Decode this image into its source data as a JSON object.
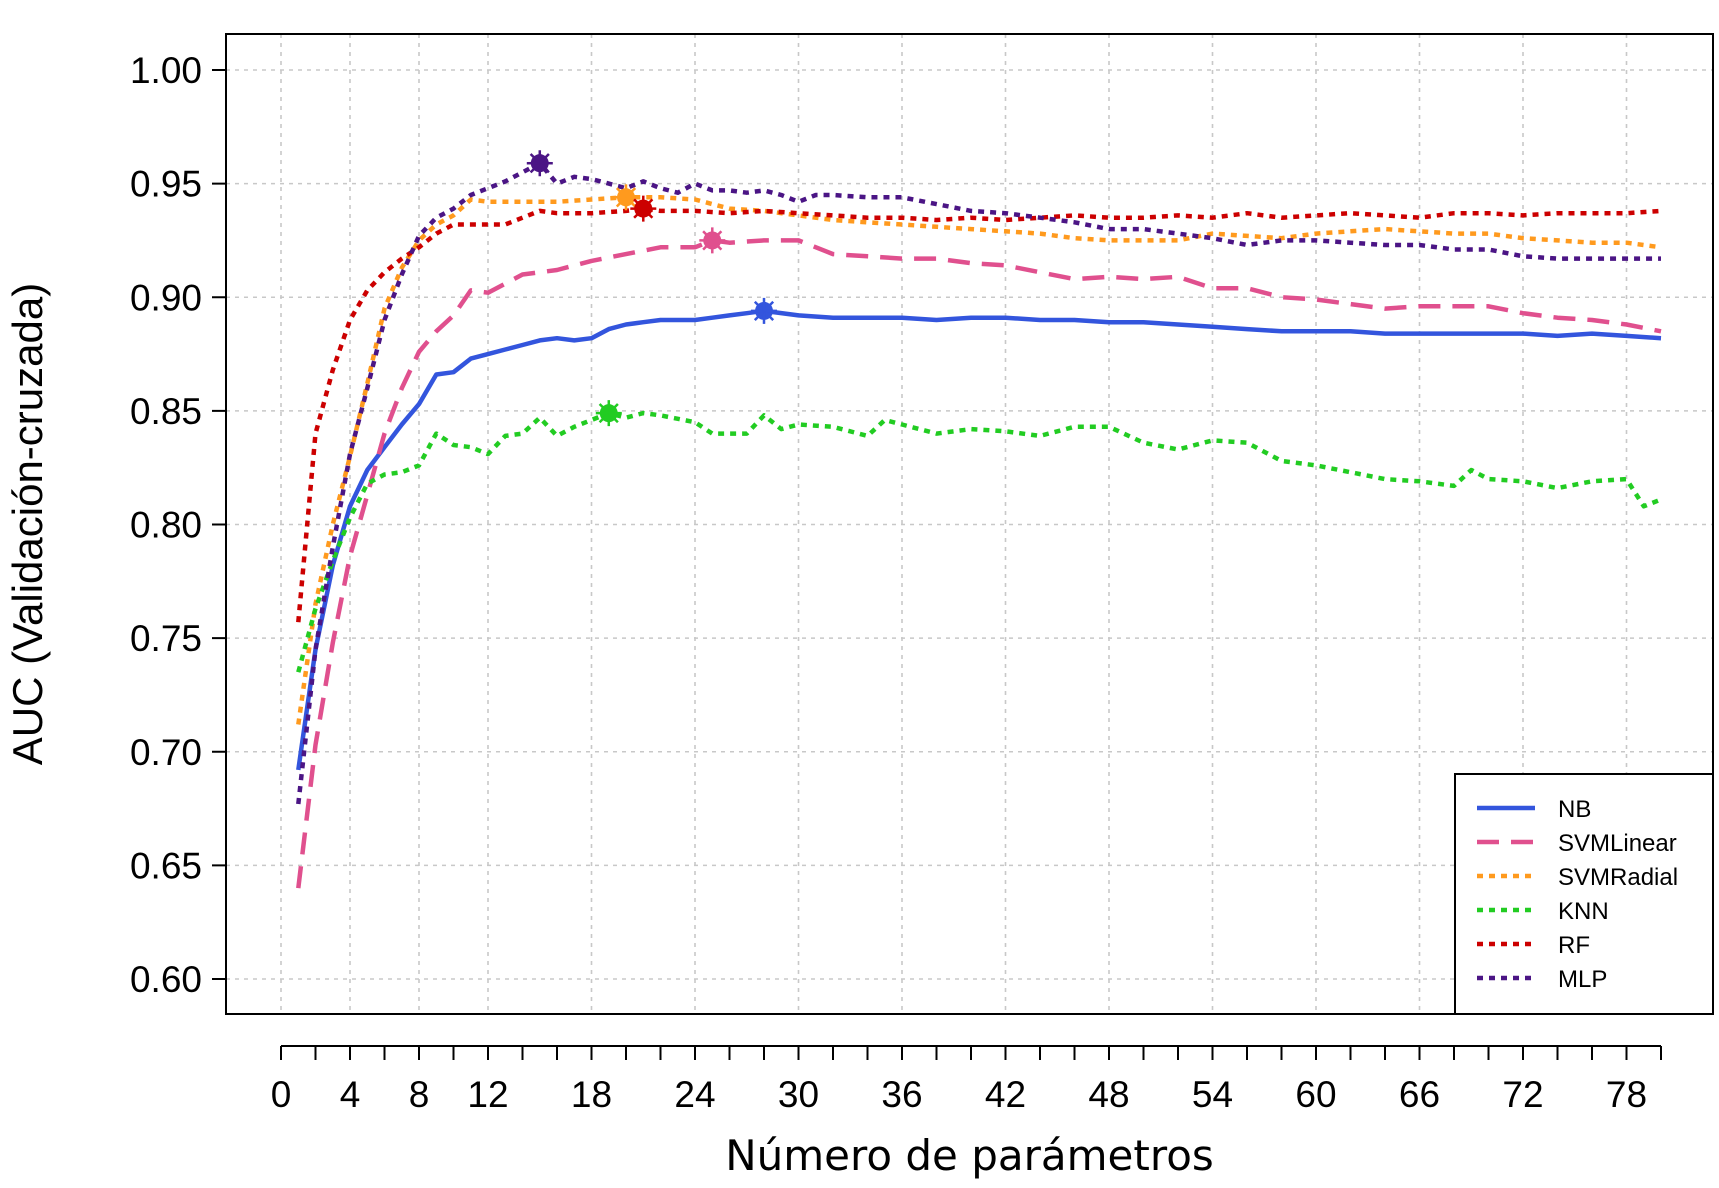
{
  "chart_data": {
    "type": "line",
    "title": "",
    "xlabel": "Número de parámetros",
    "ylabel": "AUC (Validación-cruzada)",
    "xlim": [
      0,
      80
    ],
    "ylim": [
      0.6,
      1.0
    ],
    "xticks_major": [
      0,
      4,
      8,
      12,
      18,
      24,
      30,
      36,
      42,
      48,
      54,
      60,
      66,
      72,
      78
    ],
    "xticks_minor_step": 2,
    "yticks": [
      "0.60",
      "0.65",
      "0.70",
      "0.75",
      "0.80",
      "0.85",
      "0.90",
      "0.95",
      "1.00"
    ],
    "grid": true,
    "legend_position": "bottom-right",
    "series": [
      {
        "name": "NB",
        "color": "#3355DD",
        "dash": "solid",
        "best": [
          28,
          0.894
        ],
        "x": [
          1,
          2,
          3,
          4,
          5,
          6,
          7,
          8,
          9,
          10,
          11,
          12,
          13,
          14,
          15,
          16,
          17,
          18,
          19,
          20,
          21,
          22,
          23,
          24,
          25,
          26,
          27,
          28,
          30,
          32,
          34,
          36,
          38,
          40,
          42,
          44,
          46,
          48,
          50,
          52,
          54,
          56,
          58,
          60,
          62,
          64,
          66,
          68,
          70,
          72,
          74,
          76,
          78,
          80
        ],
        "y": [
          0.692,
          0.745,
          0.782,
          0.808,
          0.824,
          0.834,
          0.844,
          0.853,
          0.866,
          0.867,
          0.873,
          0.875,
          0.877,
          0.879,
          0.881,
          0.882,
          0.881,
          0.882,
          0.886,
          0.888,
          0.889,
          0.89,
          0.89,
          0.89,
          0.891,
          0.892,
          0.893,
          0.894,
          0.892,
          0.891,
          0.891,
          0.891,
          0.89,
          0.891,
          0.891,
          0.89,
          0.89,
          0.889,
          0.889,
          0.888,
          0.887,
          0.886,
          0.885,
          0.885,
          0.885,
          0.884,
          0.884,
          0.884,
          0.884,
          0.884,
          0.883,
          0.884,
          0.883,
          0.882
        ]
      },
      {
        "name": "SVMLinear",
        "color": "#E0508E",
        "dash": "long-dash",
        "best": [
          25,
          0.925
        ],
        "x": [
          1,
          2,
          3,
          4,
          5,
          6,
          7,
          8,
          9,
          10,
          11,
          12,
          13,
          14,
          16,
          18,
          20,
          22,
          24,
          25,
          26,
          28,
          30,
          32,
          34,
          36,
          38,
          40,
          42,
          44,
          46,
          48,
          50,
          52,
          54,
          56,
          58,
          60,
          62,
          64,
          66,
          68,
          70,
          72,
          74,
          76,
          78,
          80
        ],
        "y": [
          0.64,
          0.703,
          0.748,
          0.786,
          0.813,
          0.84,
          0.86,
          0.876,
          0.885,
          0.892,
          0.903,
          0.902,
          0.906,
          0.91,
          0.912,
          0.916,
          0.919,
          0.922,
          0.922,
          0.925,
          0.924,
          0.925,
          0.925,
          0.919,
          0.918,
          0.917,
          0.917,
          0.915,
          0.914,
          0.911,
          0.908,
          0.909,
          0.908,
          0.909,
          0.904,
          0.904,
          0.9,
          0.899,
          0.897,
          0.895,
          0.896,
          0.896,
          0.896,
          0.893,
          0.891,
          0.89,
          0.888,
          0.885
        ]
      },
      {
        "name": "SVMRadial",
        "color": "#FF9A1E",
        "dash": "dot",
        "best": [
          20,
          0.944
        ],
        "x": [
          1,
          2,
          3,
          4,
          5,
          6,
          7,
          8,
          9,
          10,
          11,
          12,
          14,
          16,
          18,
          20,
          22,
          24,
          26,
          28,
          30,
          32,
          34,
          36,
          38,
          40,
          42,
          44,
          46,
          48,
          50,
          52,
          54,
          56,
          58,
          60,
          62,
          64,
          66,
          68,
          70,
          72,
          74,
          76,
          78,
          80
        ],
        "y": [
          0.712,
          0.765,
          0.8,
          0.83,
          0.862,
          0.895,
          0.913,
          0.925,
          0.932,
          0.936,
          0.943,
          0.942,
          0.942,
          0.942,
          0.943,
          0.944,
          0.944,
          0.943,
          0.939,
          0.938,
          0.936,
          0.934,
          0.933,
          0.932,
          0.931,
          0.93,
          0.929,
          0.928,
          0.926,
          0.925,
          0.925,
          0.925,
          0.928,
          0.927,
          0.926,
          0.928,
          0.929,
          0.93,
          0.929,
          0.928,
          0.928,
          0.926,
          0.925,
          0.924,
          0.924,
          0.922
        ]
      },
      {
        "name": "KNN",
        "color": "#22CC22",
        "dash": "dot",
        "best": [
          19,
          0.849
        ],
        "x": [
          1,
          2,
          3,
          4,
          5,
          6,
          7,
          8,
          9,
          10,
          11,
          12,
          13,
          14,
          15,
          16,
          17,
          18,
          19,
          20,
          21,
          22,
          24,
          25,
          26,
          27,
          28,
          29,
          30,
          32,
          34,
          35,
          36,
          38,
          40,
          42,
          44,
          46,
          48,
          50,
          52,
          54,
          56,
          58,
          60,
          62,
          64,
          66,
          68,
          69,
          70,
          72,
          74,
          76,
          78,
          79,
          80
        ],
        "y": [
          0.735,
          0.763,
          0.784,
          0.803,
          0.818,
          0.822,
          0.823,
          0.826,
          0.84,
          0.835,
          0.834,
          0.831,
          0.839,
          0.84,
          0.847,
          0.839,
          0.843,
          0.846,
          0.849,
          0.847,
          0.849,
          0.848,
          0.845,
          0.84,
          0.84,
          0.84,
          0.848,
          0.842,
          0.844,
          0.843,
          0.839,
          0.846,
          0.844,
          0.84,
          0.842,
          0.841,
          0.839,
          0.843,
          0.843,
          0.836,
          0.833,
          0.837,
          0.836,
          0.828,
          0.826,
          0.823,
          0.82,
          0.819,
          0.817,
          0.824,
          0.82,
          0.819,
          0.816,
          0.819,
          0.82,
          0.808,
          0.811
        ]
      },
      {
        "name": "RF",
        "color": "#CC0000",
        "dash": "dot",
        "best": [
          21,
          0.939
        ],
        "x": [
          1,
          2,
          3,
          4,
          5,
          6,
          7,
          8,
          9,
          10,
          11,
          12,
          13,
          14,
          15,
          16,
          18,
          20,
          21,
          22,
          24,
          26,
          28,
          30,
          32,
          34,
          36,
          38,
          40,
          42,
          44,
          46,
          48,
          50,
          52,
          54,
          56,
          58,
          60,
          62,
          64,
          66,
          68,
          70,
          72,
          74,
          76,
          78,
          80
        ],
        "y": [
          0.757,
          0.84,
          0.868,
          0.89,
          0.903,
          0.911,
          0.917,
          0.922,
          0.928,
          0.932,
          0.932,
          0.932,
          0.932,
          0.935,
          0.938,
          0.937,
          0.937,
          0.938,
          0.939,
          0.938,
          0.938,
          0.937,
          0.938,
          0.937,
          0.936,
          0.935,
          0.935,
          0.934,
          0.935,
          0.934,
          0.935,
          0.936,
          0.935,
          0.935,
          0.936,
          0.935,
          0.937,
          0.935,
          0.936,
          0.937,
          0.936,
          0.935,
          0.937,
          0.937,
          0.936,
          0.937,
          0.937,
          0.937,
          0.938
        ]
      },
      {
        "name": "MLP",
        "color": "#4B1585",
        "dash": "dot",
        "best": [
          15,
          0.959
        ],
        "x": [
          1,
          2,
          3,
          4,
          5,
          6,
          7,
          8,
          9,
          10,
          11,
          12,
          13,
          14,
          15,
          16,
          17,
          18,
          19,
          20,
          21,
          22,
          23,
          24,
          25,
          26,
          27,
          28,
          29,
          30,
          31,
          32,
          34,
          36,
          38,
          40,
          42,
          44,
          46,
          48,
          50,
          52,
          54,
          56,
          58,
          60,
          62,
          64,
          66,
          68,
          70,
          72,
          74,
          76,
          78,
          80
        ],
        "y": [
          0.677,
          0.745,
          0.79,
          0.831,
          0.86,
          0.89,
          0.91,
          0.927,
          0.935,
          0.939,
          0.945,
          0.948,
          0.951,
          0.955,
          0.959,
          0.95,
          0.953,
          0.952,
          0.95,
          0.948,
          0.951,
          0.948,
          0.946,
          0.95,
          0.947,
          0.947,
          0.946,
          0.947,
          0.945,
          0.942,
          0.945,
          0.945,
          0.944,
          0.944,
          0.941,
          0.938,
          0.937,
          0.935,
          0.933,
          0.93,
          0.93,
          0.928,
          0.926,
          0.923,
          0.925,
          0.925,
          0.924,
          0.923,
          0.923,
          0.921,
          0.921,
          0.918,
          0.917,
          0.917,
          0.917,
          0.917
        ]
      }
    ]
  }
}
